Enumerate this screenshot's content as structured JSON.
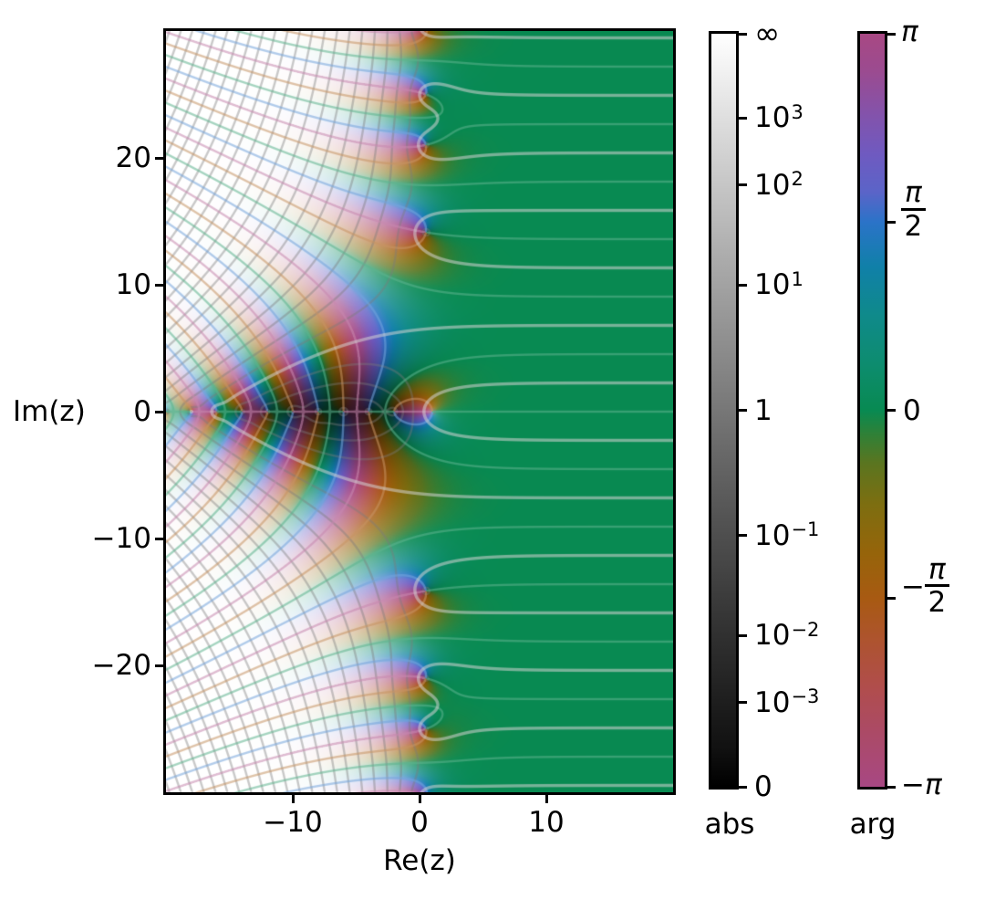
{
  "figure": {
    "background": "#ffffff"
  },
  "axes": {
    "xlabel": "Re(z)",
    "ylabel": "Im(z)",
    "x_ticks": [
      {
        "value": -10,
        "label": "−10"
      },
      {
        "value": 0,
        "label": "0"
      },
      {
        "value": 10,
        "label": "10"
      }
    ],
    "y_ticks": [
      {
        "value": 20,
        "label": "20"
      },
      {
        "value": 10,
        "label": "10"
      },
      {
        "value": 0,
        "label": "0"
      },
      {
        "value": -10,
        "label": "−10"
      },
      {
        "value": -20,
        "label": "−20"
      }
    ]
  },
  "colorbars": {
    "abs": {
      "title": "abs",
      "scaling": "t = |f|^h / (1 + |f|^h), h = 0.3",
      "gradient": "CIELAB lightness ramp black to white",
      "ticks": [
        {
          "v": "inf",
          "text": "∞"
        },
        {
          "v": 1000,
          "base": "10",
          "sup": "3"
        },
        {
          "v": 100,
          "base": "10",
          "sup": "2"
        },
        {
          "v": 10,
          "base": "10",
          "sup": "1"
        },
        {
          "v": 1,
          "text": "1"
        },
        {
          "v": 0.1,
          "base": "10",
          "sup": "−1"
        },
        {
          "v": 0.01,
          "base": "10",
          "sup": "−2"
        },
        {
          "v": 0.001,
          "base": "10",
          "sup": "−3"
        },
        {
          "v": 0,
          "text": "0"
        }
      ]
    },
    "arg": {
      "title": "arg",
      "ticks": [
        {
          "frac": 1.0,
          "sign": "",
          "num": "π",
          "den": null
        },
        {
          "frac": 0.75,
          "sign": "",
          "num": "π",
          "den": "2"
        },
        {
          "frac": 0.5,
          "text": "0"
        },
        {
          "frac": 0.25,
          "sign": "−",
          "num": "π",
          "den": "2"
        },
        {
          "frac": 0.0,
          "sign": "−",
          "num": "π",
          "den": null
        }
      ]
    }
  },
  "chart_data": {
    "type": "heatmap",
    "subtype": "complex-domain-coloring",
    "description": "Domain coloring of a complex function whose structure matches the Riemann zeta function: hue encodes arg f(z), lightness encodes |f(z)|. Gray contour lines mark |f| = exp(k·π/2); pastel colored lines mark arg f = k·π/2 (green 0, blue π/2, magenta ±π, orange −π/2); the thick light-gray line is |f| = 1.",
    "xlabel": "Re(z)",
    "ylabel": "Im(z)",
    "xlim": [
      -20,
      20
    ],
    "ylim": [
      -30,
      30
    ],
    "x_ticks": [
      -10,
      0,
      10
    ],
    "y_ticks": [
      -20,
      -10,
      0,
      10,
      20
    ],
    "abs_scaling_h": 0.3,
    "features": {
      "pole": [
        [
          1,
          0
        ]
      ],
      "zeros_on_real_axis": [
        -2,
        -4,
        -6,
        -8,
        -10,
        -12,
        -14,
        -16,
        -18
      ],
      "zero_heights_near_re_0": [
        14.1,
        21.0,
        25.0
      ],
      "right_half_plane_value": "f → 1 (arg 0, |f| 1)"
    },
    "phase_colormap": [
      {
        "pos": 0.0,
        "color": "#a84883"
      },
      {
        "pos": 0.07,
        "color": "#ab4a67"
      },
      {
        "pos": 0.13,
        "color": "#b04d4d"
      },
      {
        "pos": 0.19,
        "color": "#ae5331"
      },
      {
        "pos": 0.25,
        "color": "#a85a12"
      },
      {
        "pos": 0.31,
        "color": "#96640a"
      },
      {
        "pos": 0.375,
        "color": "#7d6e10"
      },
      {
        "pos": 0.43,
        "color": "#5a7520"
      },
      {
        "pos": 0.47,
        "color": "#2d8138"
      },
      {
        "pos": 0.5,
        "color": "#088a52"
      },
      {
        "pos": 0.56,
        "color": "#0d8c6e"
      },
      {
        "pos": 0.625,
        "color": "#0f8a8a"
      },
      {
        "pos": 0.69,
        "color": "#1080a8"
      },
      {
        "pos": 0.75,
        "color": "#2b73c8"
      },
      {
        "pos": 0.79,
        "color": "#5b64c8"
      },
      {
        "pos": 0.84,
        "color": "#6f5ac0"
      },
      {
        "pos": 0.89,
        "color": "#8253ac"
      },
      {
        "pos": 0.95,
        "color": "#9b4b90"
      },
      {
        "pos": 1.0,
        "color": "#a84883"
      }
    ],
    "contours": {
      "abs_levels": "exp(k·π/2)",
      "arg_levels": "k·π/2",
      "abs_line_color": "#7a7a7a",
      "abs_line_alpha": 0.4,
      "abs_line_width": 2.2,
      "unit_abs_line_color": "#d2d2d2",
      "unit_abs_line_alpha": 0.55,
      "unit_abs_line_width": 3.2,
      "arg_line_whiten": 0.35,
      "arg_line_alpha": 0.55,
      "arg_line_width": 2.2
    },
    "colors": {
      "right_half_green": "#088a52",
      "frame": "#000000",
      "figure_background": "#ffffff"
    }
  }
}
